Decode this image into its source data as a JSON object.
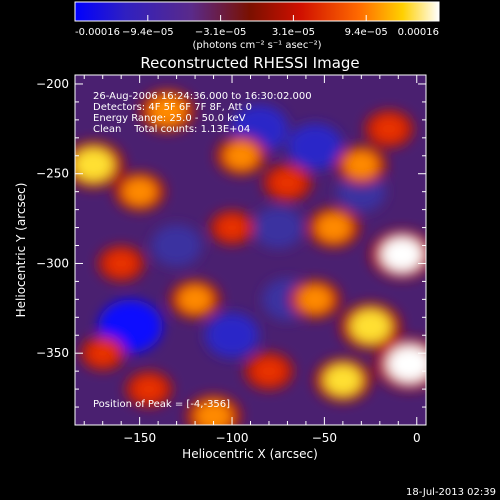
{
  "chart_data": {
    "type": "heatmap",
    "title": "Reconstructed RHESSI Image",
    "xlabel": "Heliocentric X (arcsec)",
    "ylabel": "Heliocentric Y (arcsec)",
    "xlim": [
      -185,
      5
    ],
    "ylim": [
      -390,
      -195
    ],
    "x_ticks": [
      -150,
      -100,
      -50,
      0
    ],
    "y_ticks": [
      -200,
      -250,
      -300,
      -350
    ],
    "colorbar": {
      "range": [
        -0.00016,
        0.00016
      ],
      "tick_labels": [
        "-0.00016",
        "−9.4e−05",
        "−3.1e−05",
        "3.1e−05",
        "9.4e−05",
        "0.00016"
      ],
      "unit_label": "(photons cm⁻² s⁻¹ asec⁻²)",
      "colormap": [
        "#0000ff",
        "#3020c0",
        "#5a2a8a",
        "#7a1000",
        "#d01000",
        "#ff6a00",
        "#ffd000",
        "#ffffff"
      ]
    },
    "annotations": {
      "time_range": "26-Aug-2006 16:24:36.000 to 16:30:02.000",
      "detectors": "Detectors: 4F 5F 6F 7F 8F, Att 0",
      "energy": "Energy Range: 25.0 - 50.0 keV",
      "clean": "Clean    Total counts: 1.13E+04",
      "peak": "Position of Peak = [-4,-356]"
    },
    "peak_position": [
      -4,
      -356
    ],
    "sources": [
      {
        "x": -4,
        "y": -356,
        "intensity": 1.0
      },
      {
        "x": -8,
        "y": -295,
        "intensity": 0.9
      },
      {
        "x": -25,
        "y": -335,
        "intensity": 0.85
      },
      {
        "x": -175,
        "y": -245,
        "intensity": 0.85
      },
      {
        "x": -150,
        "y": -260,
        "intensity": 0.6
      },
      {
        "x": -135,
        "y": -215,
        "intensity": 0.7
      },
      {
        "x": -95,
        "y": -240,
        "intensity": 0.6
      },
      {
        "x": -70,
        "y": -255,
        "intensity": 0.55
      },
      {
        "x": -30,
        "y": -245,
        "intensity": 0.6
      },
      {
        "x": -45,
        "y": -280,
        "intensity": 0.65
      },
      {
        "x": -55,
        "y": -320,
        "intensity": 0.6
      },
      {
        "x": -120,
        "y": -320,
        "intensity": 0.6
      },
      {
        "x": -160,
        "y": -300,
        "intensity": 0.5
      },
      {
        "x": -170,
        "y": -350,
        "intensity": 0.45
      },
      {
        "x": -110,
        "y": -385,
        "intensity": 0.7
      },
      {
        "x": -80,
        "y": -360,
        "intensity": 0.55
      },
      {
        "x": -40,
        "y": -365,
        "intensity": 0.75
      },
      {
        "x": -15,
        "y": -225,
        "intensity": 0.55
      },
      {
        "x": -100,
        "y": -280,
        "intensity": 0.45
      },
      {
        "x": -145,
        "y": -370,
        "intensity": 0.5
      }
    ],
    "negatives": [
      {
        "x": -155,
        "y": -335,
        "intensity": -0.9
      },
      {
        "x": -85,
        "y": -225,
        "intensity": -0.7
      },
      {
        "x": -55,
        "y": -235,
        "intensity": -0.65
      },
      {
        "x": -100,
        "y": -340,
        "intensity": -0.6
      },
      {
        "x": -70,
        "y": -320,
        "intensity": -0.5
      },
      {
        "x": -130,
        "y": -290,
        "intensity": -0.5
      },
      {
        "x": -30,
        "y": -260,
        "intensity": -0.45
      },
      {
        "x": -75,
        "y": -280,
        "intensity": -0.5
      }
    ]
  },
  "footer": {
    "timestamp": "18-Jul-2013 02:39"
  }
}
